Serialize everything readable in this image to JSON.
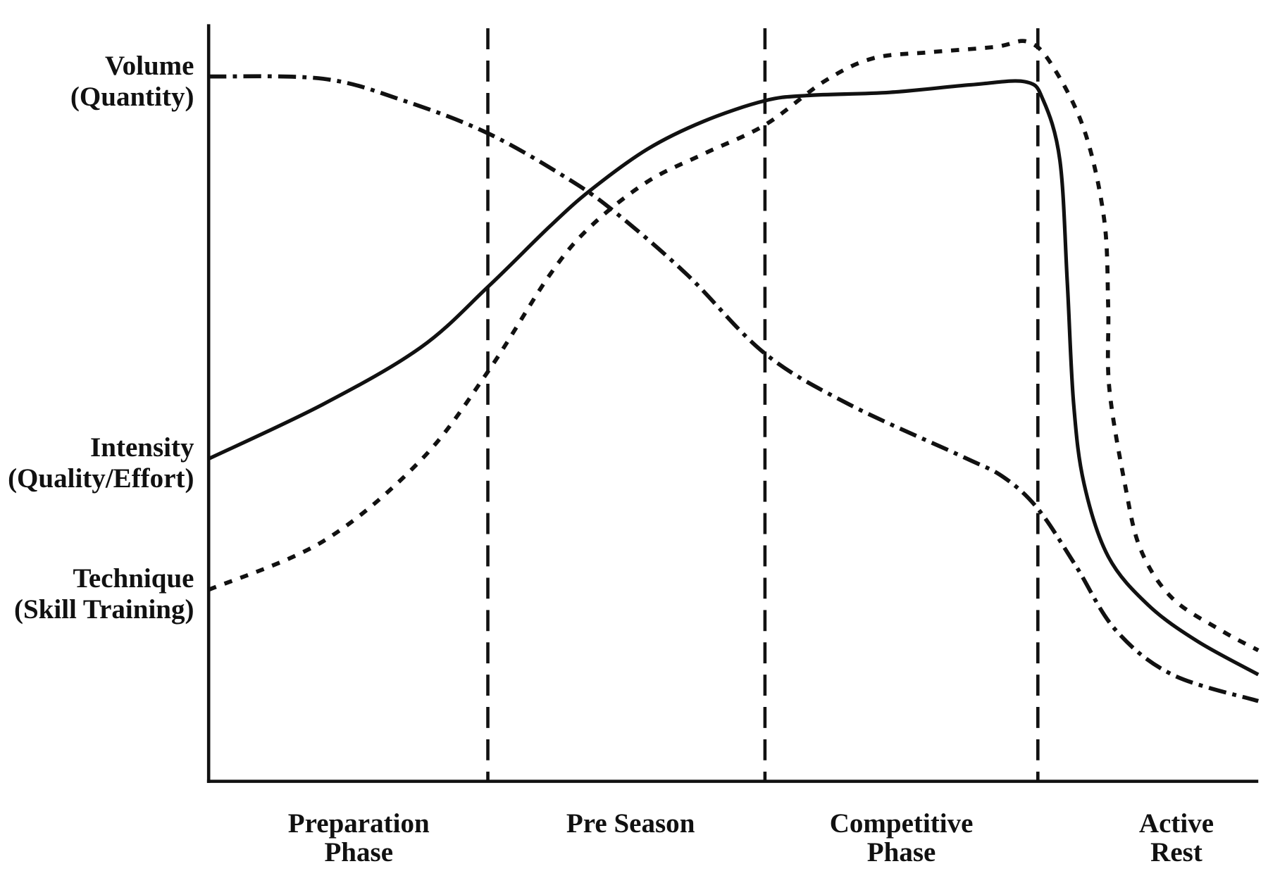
{
  "chart_data": {
    "type": "line",
    "title": "",
    "xlabel": "",
    "ylabel": "",
    "xlim": [
      0,
      100
    ],
    "ylim": [
      0,
      100
    ],
    "grid": false,
    "y_labels": [
      {
        "line1": "Volume",
        "line2": "(Quantity)",
        "y": 93
      },
      {
        "line1": "Intensity",
        "line2": "(Quality/Effort)",
        "y": 42.6
      },
      {
        "line1": "Technique",
        "line2": "(Skill Training)",
        "y": 25.3
      }
    ],
    "phase_boundaries": [
      26.6,
      53.0,
      79.0
    ],
    "phases": [
      {
        "line1": "Preparation",
        "line2": "Phase",
        "x": 14.3
      },
      {
        "line1": "Pre Season",
        "line2": "",
        "x": 40.2
      },
      {
        "line1": "Competitive",
        "line2": "Phase",
        "x": 66.0
      },
      {
        "line1": "Active",
        "line2": "Rest",
        "x": 92.2
      }
    ],
    "series": [
      {
        "name": "Volume (Quantity)",
        "style": "dash-dot",
        "x": [
          0,
          10.9,
          18.6,
          26.6,
          34.1,
          38.7,
          45.6,
          53.0,
          61.0,
          71.8,
          75.7,
          79.0,
          82.6,
          86.4,
          91.8,
          100
        ],
        "y": [
          93.1,
          92.8,
          89.9,
          85.6,
          79.7,
          75.2,
          66.9,
          56.5,
          49.8,
          42.9,
          40.2,
          36.0,
          28.5,
          20.0,
          14.1,
          10.6
        ]
      },
      {
        "name": "Intensity (Quality/Effort)",
        "style": "solid",
        "x": [
          0,
          10.9,
          20.2,
          26.6,
          32.5,
          36.4,
          41.8,
          47.2,
          53.0,
          57.2,
          64.9,
          72.6,
          77.8,
          79.5,
          81.1,
          81.8,
          82.4,
          83.4,
          85.7,
          89.5,
          94.2,
          100
        ],
        "y": [
          42.6,
          49.8,
          57.3,
          65.3,
          73.3,
          78.1,
          83.5,
          87.2,
          89.9,
          90.6,
          91.0,
          92.0,
          92.4,
          90.0,
          82.0,
          66.0,
          50.0,
          39.3,
          29.7,
          23.3,
          18.5,
          14.1
        ]
      },
      {
        "name": "Technique (Skill Training)",
        "style": "dotted",
        "x": [
          0,
          10.9,
          20.2,
          26.6,
          32.5,
          36.4,
          41.8,
          47.2,
          53.0,
          58.7,
          63.3,
          68.7,
          74.9,
          78.0,
          80.3,
          83.4,
          85.3,
          85.7,
          85.8,
          87.3,
          88.8,
          91.8,
          96.5,
          100
        ],
        "y": [
          25.3,
          31.7,
          42.4,
          54.1,
          66.9,
          73.3,
          79.2,
          82.9,
          86.7,
          92.5,
          95.5,
          96.3,
          97.0,
          97.7,
          94.7,
          86.1,
          74.4,
          62.7,
          52.0,
          39.2,
          30.6,
          24.2,
          19.9,
          17.3
        ]
      }
    ]
  }
}
